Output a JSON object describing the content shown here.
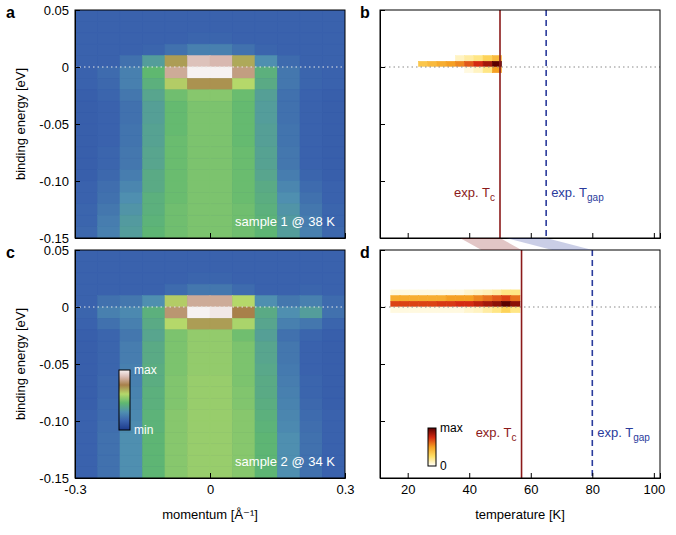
{
  "chart_data": [
    {
      "type": "heatmap",
      "panel_label": "a",
      "ylabel": "binding energy [eV]",
      "annotation": "sample 1 @ 38 K",
      "x": [
        -0.275,
        -0.225,
        -0.175,
        -0.125,
        -0.075,
        -0.025,
        0.025,
        0.075,
        0.125,
        0.175,
        0.225,
        0.275
      ],
      "y": [
        0.045,
        0.035,
        0.025,
        0.015,
        0.005,
        -0.005,
        -0.015,
        -0.025,
        -0.035,
        -0.045,
        -0.055,
        -0.065,
        -0.075,
        -0.085,
        -0.095,
        -0.105,
        -0.115,
        -0.125,
        -0.135,
        -0.145
      ],
      "z": [
        [
          0.15,
          0.15,
          0.15,
          0.15,
          0.15,
          0.15,
          0.15,
          0.15,
          0.15,
          0.15,
          0.15,
          0.15
        ],
        [
          0.15,
          0.15,
          0.15,
          0.15,
          0.15,
          0.15,
          0.15,
          0.15,
          0.15,
          0.15,
          0.15,
          0.15
        ],
        [
          0.15,
          0.15,
          0.15,
          0.15,
          0.15,
          0.16,
          0.16,
          0.15,
          0.15,
          0.15,
          0.15,
          0.15
        ],
        [
          0.15,
          0.15,
          0.15,
          0.16,
          0.2,
          0.25,
          0.25,
          0.2,
          0.16,
          0.15,
          0.15,
          0.15
        ],
        [
          0.15,
          0.15,
          0.2,
          0.35,
          0.7,
          0.9,
          0.88,
          0.68,
          0.3,
          0.18,
          0.15,
          0.15
        ],
        [
          0.15,
          0.18,
          0.25,
          0.45,
          0.85,
          1.0,
          1.0,
          0.82,
          0.42,
          0.22,
          0.16,
          0.15
        ],
        [
          0.15,
          0.17,
          0.25,
          0.42,
          0.62,
          0.72,
          0.72,
          0.6,
          0.4,
          0.22,
          0.16,
          0.15
        ],
        [
          0.14,
          0.16,
          0.22,
          0.38,
          0.48,
          0.52,
          0.52,
          0.47,
          0.36,
          0.2,
          0.15,
          0.14
        ],
        [
          0.14,
          0.15,
          0.2,
          0.36,
          0.46,
          0.5,
          0.5,
          0.46,
          0.35,
          0.2,
          0.15,
          0.14
        ],
        [
          0.14,
          0.15,
          0.2,
          0.36,
          0.46,
          0.5,
          0.5,
          0.46,
          0.35,
          0.2,
          0.15,
          0.14
        ],
        [
          0.14,
          0.15,
          0.21,
          0.37,
          0.46,
          0.5,
          0.5,
          0.46,
          0.36,
          0.21,
          0.15,
          0.14
        ],
        [
          0.14,
          0.15,
          0.21,
          0.37,
          0.47,
          0.5,
          0.5,
          0.46,
          0.36,
          0.21,
          0.15,
          0.14
        ],
        [
          0.14,
          0.16,
          0.22,
          0.38,
          0.47,
          0.5,
          0.5,
          0.47,
          0.37,
          0.22,
          0.15,
          0.14
        ],
        [
          0.14,
          0.16,
          0.22,
          0.38,
          0.47,
          0.5,
          0.5,
          0.47,
          0.37,
          0.22,
          0.15,
          0.14
        ],
        [
          0.14,
          0.17,
          0.24,
          0.4,
          0.47,
          0.5,
          0.5,
          0.47,
          0.38,
          0.24,
          0.16,
          0.14
        ],
        [
          0.15,
          0.19,
          0.27,
          0.4,
          0.47,
          0.5,
          0.5,
          0.47,
          0.4,
          0.27,
          0.18,
          0.15
        ],
        [
          0.15,
          0.2,
          0.3,
          0.42,
          0.47,
          0.5,
          0.5,
          0.47,
          0.41,
          0.3,
          0.2,
          0.15
        ],
        [
          0.16,
          0.22,
          0.32,
          0.42,
          0.48,
          0.5,
          0.5,
          0.48,
          0.42,
          0.32,
          0.22,
          0.16
        ],
        [
          0.16,
          0.24,
          0.34,
          0.43,
          0.48,
          0.5,
          0.5,
          0.48,
          0.43,
          0.34,
          0.24,
          0.16
        ],
        [
          0.17,
          0.25,
          0.35,
          0.44,
          0.48,
          0.5,
          0.5,
          0.48,
          0.44,
          0.35,
          0.25,
          0.17
        ]
      ],
      "zlim": [
        0,
        1
      ],
      "xlim": [
        -0.3,
        0.3
      ],
      "ylim": [
        -0.15,
        0.05
      ],
      "xticks": [
        -0.3,
        0,
        0.3
      ],
      "yticks": [
        0.05,
        0,
        -0.05,
        {
          "value": -0.1,
          "label": "-0.10"
        },
        -0.15
      ],
      "tick_labels": "y",
      "hline": 0
    },
    {
      "type": "heatmap",
      "panel_label": "b",
      "x": [
        25,
        28,
        31,
        34,
        37,
        40,
        43,
        46,
        49
      ],
      "y": [
        0.0075,
        0.0025,
        -0.0025
      ],
      "z": [
        [
          0,
          0,
          0,
          0,
          0.1,
          0.15,
          0.2,
          0.3,
          0.4
        ],
        [
          0.35,
          0.4,
          0.45,
          0.5,
          0.55,
          0.65,
          0.75,
          0.85,
          1.0
        ],
        [
          0,
          0,
          0,
          0,
          0,
          0.05,
          0.1,
          0.2,
          0.5
        ]
      ],
      "zlim": [
        0,
        1
      ],
      "xlim": [
        11,
        102
      ],
      "ylim": [
        -0.15,
        0.05
      ],
      "xticks": [
        20,
        40,
        60,
        80,
        100
      ],
      "yticks": [
        0.05,
        0,
        -0.05,
        {
          "value": -0.1,
          "label": "-0.10"
        },
        -0.15
      ],
      "tick_labels": false,
      "hline": 0,
      "vlines": [
        {
          "value": 50,
          "label": "exp. T",
          "subscript": "c",
          "color": "#8b1a1a",
          "line_style": "solid"
        },
        {
          "value": 65,
          "label": "exp. T",
          "subscript": "gap",
          "color": "#2a3b9c",
          "line_style": "dashed"
        }
      ]
    },
    {
      "type": "heatmap",
      "panel_label": "c",
      "xlabel": "momentum [Å⁻¹]",
      "ylabel": "binding energy [eV]",
      "annotation": "sample 2 @ 34 K",
      "x": [
        -0.275,
        -0.225,
        -0.175,
        -0.125,
        -0.075,
        -0.025,
        0.025,
        0.075,
        0.125,
        0.175,
        0.225,
        0.275
      ],
      "y": [
        0.045,
        0.035,
        0.025,
        0.015,
        0.005,
        -0.005,
        -0.015,
        -0.025,
        -0.035,
        -0.045,
        -0.055,
        -0.065,
        -0.075,
        -0.085,
        -0.095,
        -0.105,
        -0.115,
        -0.125,
        -0.135,
        -0.145
      ],
      "z": [
        [
          0.15,
          0.15,
          0.15,
          0.15,
          0.15,
          0.15,
          0.15,
          0.15,
          0.15,
          0.15,
          0.15,
          0.15
        ],
        [
          0.15,
          0.15,
          0.15,
          0.15,
          0.15,
          0.15,
          0.15,
          0.15,
          0.15,
          0.15,
          0.15,
          0.15
        ],
        [
          0.15,
          0.15,
          0.15,
          0.15,
          0.15,
          0.16,
          0.16,
          0.15,
          0.15,
          0.15,
          0.15,
          0.15
        ],
        [
          0.15,
          0.15,
          0.15,
          0.15,
          0.18,
          0.22,
          0.22,
          0.18,
          0.15,
          0.15,
          0.16,
          0.15
        ],
        [
          0.15,
          0.2,
          0.22,
          0.3,
          0.62,
          0.85,
          0.85,
          0.6,
          0.3,
          0.22,
          0.25,
          0.18
        ],
        [
          0.16,
          0.25,
          0.28,
          0.42,
          0.8,
          1.0,
          0.98,
          0.75,
          0.4,
          0.3,
          0.35,
          0.2
        ],
        [
          0.15,
          0.2,
          0.25,
          0.4,
          0.6,
          0.7,
          0.7,
          0.58,
          0.38,
          0.25,
          0.22,
          0.16
        ],
        [
          0.14,
          0.16,
          0.22,
          0.38,
          0.5,
          0.54,
          0.54,
          0.48,
          0.36,
          0.2,
          0.16,
          0.14
        ],
        [
          0.14,
          0.16,
          0.24,
          0.4,
          0.5,
          0.54,
          0.54,
          0.5,
          0.38,
          0.22,
          0.15,
          0.14
        ],
        [
          0.14,
          0.16,
          0.24,
          0.4,
          0.5,
          0.54,
          0.54,
          0.5,
          0.38,
          0.22,
          0.15,
          0.14
        ],
        [
          0.14,
          0.16,
          0.25,
          0.41,
          0.5,
          0.54,
          0.54,
          0.5,
          0.39,
          0.23,
          0.15,
          0.14
        ],
        [
          0.14,
          0.17,
          0.25,
          0.41,
          0.51,
          0.55,
          0.55,
          0.5,
          0.4,
          0.24,
          0.16,
          0.14
        ],
        [
          0.14,
          0.17,
          0.26,
          0.42,
          0.51,
          0.55,
          0.55,
          0.51,
          0.4,
          0.25,
          0.16,
          0.14
        ],
        [
          0.14,
          0.18,
          0.27,
          0.42,
          0.51,
          0.55,
          0.55,
          0.51,
          0.41,
          0.26,
          0.17,
          0.14
        ],
        [
          0.15,
          0.18,
          0.28,
          0.43,
          0.52,
          0.55,
          0.55,
          0.52,
          0.42,
          0.27,
          0.18,
          0.15
        ],
        [
          0.15,
          0.19,
          0.29,
          0.43,
          0.52,
          0.55,
          0.55,
          0.52,
          0.43,
          0.28,
          0.19,
          0.15
        ],
        [
          0.15,
          0.2,
          0.3,
          0.44,
          0.52,
          0.55,
          0.55,
          0.52,
          0.44,
          0.3,
          0.2,
          0.15
        ],
        [
          0.15,
          0.2,
          0.3,
          0.44,
          0.52,
          0.55,
          0.55,
          0.52,
          0.44,
          0.3,
          0.2,
          0.15
        ],
        [
          0.15,
          0.2,
          0.3,
          0.44,
          0.52,
          0.55,
          0.55,
          0.52,
          0.44,
          0.3,
          0.2,
          0.15
        ],
        [
          0.15,
          0.2,
          0.3,
          0.44,
          0.52,
          0.55,
          0.55,
          0.52,
          0.44,
          0.3,
          0.2,
          0.15
        ]
      ],
      "zlim": [
        0,
        1
      ],
      "colorbar_ticks": [
        {
          "value": 1,
          "label": "max"
        },
        {
          "value": 0,
          "label": "min"
        }
      ],
      "xlim": [
        -0.3,
        0.3
      ],
      "ylim": [
        -0.15,
        0.05
      ],
      "xticks": [
        -0.3,
        0,
        0.3
      ],
      "yticks": [
        0.05,
        0,
        -0.05,
        {
          "value": -0.1,
          "label": "-0.10"
        },
        -0.15
      ],
      "tick_labels": true,
      "hline": 0
    },
    {
      "type": "heatmap",
      "panel_label": "d",
      "xlabel": "temperature [K]",
      "x": [
        16,
        19,
        22,
        25,
        28,
        31,
        34,
        37,
        40,
        43,
        46,
        49,
        52,
        55
      ],
      "y": [
        0.0125,
        0.0075,
        0.0025,
        -0.0025
      ],
      "z": [
        [
          0.05,
          0.05,
          0.05,
          0.05,
          0.05,
          0.05,
          0.05,
          0.05,
          0.08,
          0.1,
          0.12,
          0.15,
          0.2,
          0.2
        ],
        [
          0.45,
          0.45,
          0.45,
          0.45,
          0.45,
          0.45,
          0.5,
          0.5,
          0.5,
          0.55,
          0.6,
          0.65,
          0.7,
          0.6
        ],
        [
          0.7,
          0.7,
          0.7,
          0.7,
          0.7,
          0.72,
          0.72,
          0.75,
          0.75,
          0.8,
          0.85,
          0.9,
          1.0,
          0.9
        ],
        [
          0.05,
          0.05,
          0.05,
          0.05,
          0.05,
          0.05,
          0.05,
          0.05,
          0.08,
          0.1,
          0.15,
          0.2,
          0.3,
          0.2
        ]
      ],
      "zlim": [
        0,
        1
      ],
      "colorbar_ticks": [
        {
          "value": 1,
          "label": "max"
        },
        0
      ],
      "xlim": [
        11,
        102
      ],
      "ylim": [
        -0.15,
        0.05
      ],
      "xticks": [
        20,
        40,
        60,
        80,
        100
      ],
      "yticks": [
        0.05,
        0,
        -0.05,
        {
          "value": -0.1,
          "label": "-0.10"
        },
        -0.15
      ],
      "tick_labels": "x",
      "hline": 0,
      "vlines": [
        {
          "value": 57,
          "label": "exp. T",
          "subscript": "c",
          "color": "#8b1a1a",
          "line_style": "solid"
        },
        {
          "value": 80,
          "label": "exp. T",
          "subscript": "gap",
          "color": "#2a3b9c",
          "line_style": "dashed"
        }
      ]
    }
  ]
}
